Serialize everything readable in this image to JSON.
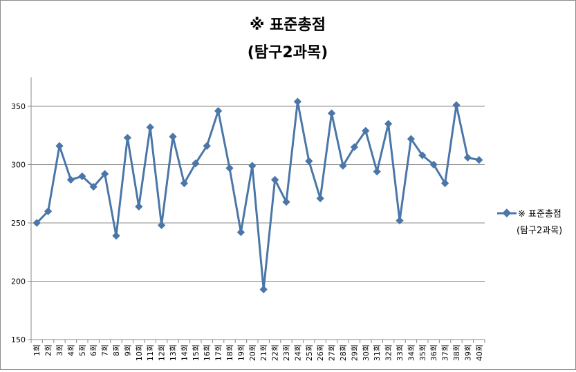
{
  "chart_data": {
    "type": "line",
    "title_line1": "※ 표준총점",
    "title_line2": "(탐구2과목)",
    "legend_line1": "※ 표준총점",
    "legend_line2": "(탐구2과목)",
    "legend_position": "right",
    "ylim": [
      150,
      350
    ],
    "y_ticks": [
      150,
      200,
      250,
      300,
      350
    ],
    "grid": true,
    "series_color": "#4a76a8",
    "categories": [
      "1회",
      "2회",
      "3회",
      "4회",
      "5회",
      "6회",
      "7회",
      "8회",
      "9회",
      "10회",
      "11회",
      "12회",
      "13회",
      "14회",
      "15회",
      "16회",
      "17회",
      "18회",
      "19회",
      "20회",
      "21회",
      "22회",
      "23회",
      "24회",
      "25회",
      "26회",
      "27회",
      "28회",
      "29회",
      "30회",
      "31회",
      "32회",
      "33회",
      "34회",
      "35회",
      "36회",
      "37회",
      "38회",
      "39회",
      "40회"
    ],
    "values": [
      250,
      260,
      316,
      287,
      290,
      281,
      292,
      239,
      323,
      264,
      332,
      248,
      324,
      284,
      301,
      316,
      346,
      297,
      242,
      299,
      193,
      287,
      268,
      354,
      303,
      271,
      344,
      299,
      315,
      329,
      294,
      335,
      252,
      322,
      308,
      300,
      284,
      351,
      306,
      304
    ]
  }
}
